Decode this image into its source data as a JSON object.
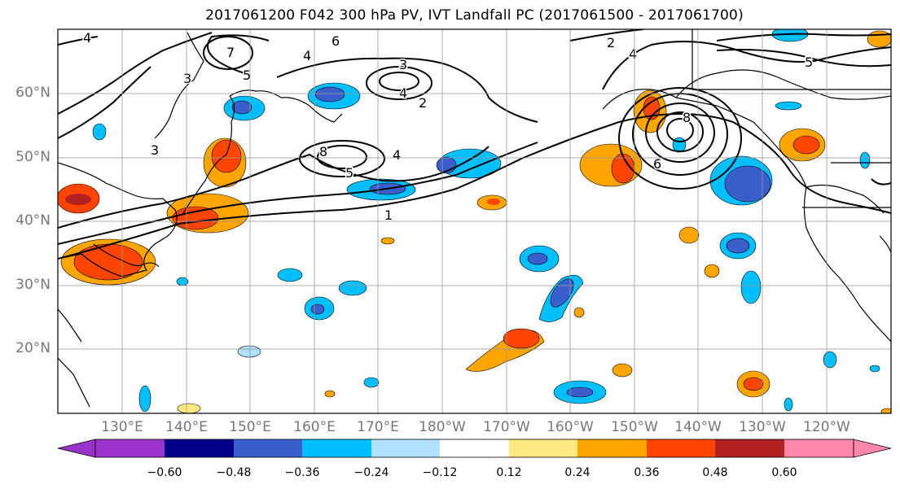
{
  "title": "2017061200 F042 300 hPa PV, IVT Landfall PC (2017061500 - 2017061700)",
  "map": {
    "lat_labels": [
      "60°N",
      "50°N",
      "40°N",
      "30°N",
      "20°N"
    ],
    "lon_labels": [
      "130°E",
      "140°E",
      "150°E",
      "160°E",
      "170°E",
      "180°W",
      "170°W",
      "160°W",
      "150°W",
      "140°W",
      "130°W",
      "120°W"
    ],
    "extent": {
      "lon_min": 120,
      "lon_max": 250,
      "lat_min": 10,
      "lat_max": 70
    },
    "contour_labels": [
      "1",
      "2",
      "3",
      "4",
      "5",
      "6",
      "7",
      "8"
    ],
    "colors": {
      "land_outline": "#000000",
      "contour": "#000000",
      "gridline": "#999999"
    }
  },
  "colorbar": {
    "ticks": [
      "−0.60",
      "−0.48",
      "−0.36",
      "−0.24",
      "−0.12",
      "0.12",
      "0.24",
      "0.36",
      "0.48",
      "0.60"
    ],
    "colors": [
      "#9933cc",
      "#000088",
      "#3a5fcd",
      "#00bfff",
      "#b0e2ff",
      "#ffffff",
      "#ffe880",
      "#ffa500",
      "#ff4500",
      "#b22222",
      "#ff88aa"
    ]
  }
}
